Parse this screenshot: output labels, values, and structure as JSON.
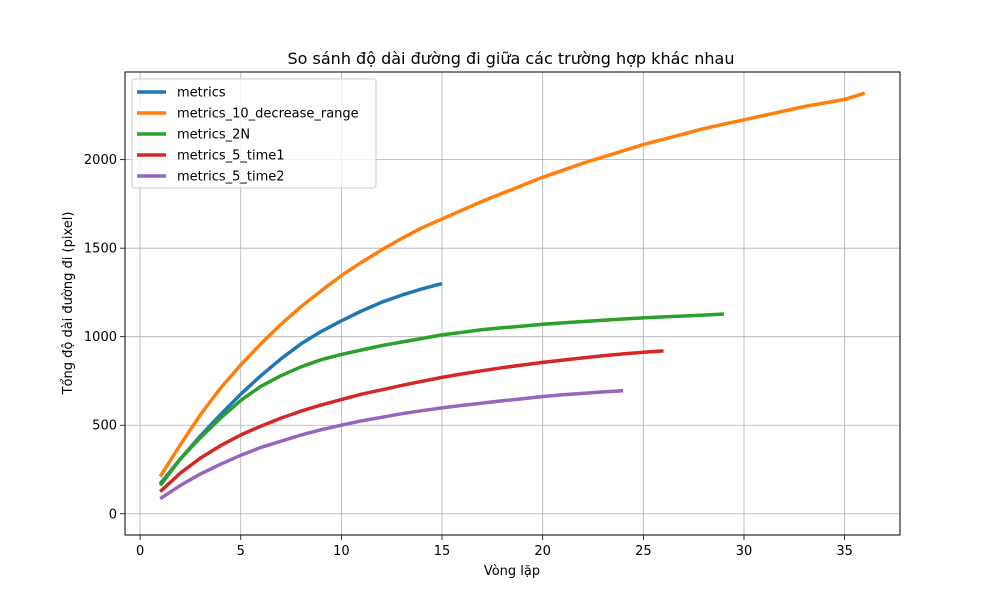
{
  "chart_data": {
    "type": "line",
    "title": "So sánh độ dài đường đi giữa các trường hợp khác nhau",
    "xlabel": "Vòng lặp",
    "ylabel": "Tổng độ dài đường đi (pixel)",
    "xlim": [
      -0.75,
      37.75
    ],
    "ylim": [
      -120,
      2495
    ],
    "xticks": [
      0,
      5,
      10,
      15,
      20,
      25,
      30,
      35
    ],
    "yticks": [
      0,
      500,
      1000,
      1500,
      2000
    ],
    "grid": true,
    "legend_position": "top-left",
    "series": [
      {
        "name": "metrics",
        "color": "#1f77b4",
        "x": [
          1,
          2,
          3,
          4,
          5,
          6,
          7,
          8,
          9,
          10,
          11,
          12,
          13,
          14,
          15
        ],
        "y": [
          170,
          310,
          440,
          560,
          675,
          780,
          875,
          960,
          1030,
          1090,
          1145,
          1195,
          1235,
          1270,
          1300
        ]
      },
      {
        "name": "metrics_10_decrease_range",
        "color": "#ff7f0e",
        "x": [
          1,
          2,
          3,
          4,
          5,
          6,
          7,
          8,
          9,
          10,
          11,
          12,
          13,
          14,
          15,
          16,
          17,
          18,
          19,
          20,
          21,
          22,
          23,
          24,
          25,
          26,
          27,
          28,
          29,
          30,
          31,
          32,
          33,
          34,
          35,
          36
        ],
        "y": [
          210,
          390,
          560,
          710,
          840,
          960,
          1070,
          1170,
          1260,
          1345,
          1420,
          1490,
          1555,
          1615,
          1665,
          1715,
          1765,
          1810,
          1855,
          1900,
          1940,
          1980,
          2015,
          2050,
          2085,
          2115,
          2145,
          2175,
          2200,
          2225,
          2250,
          2275,
          2300,
          2320,
          2340,
          2375
        ]
      },
      {
        "name": "metrics_2N",
        "color": "#2ca02c",
        "x": [
          1,
          2,
          3,
          4,
          5,
          6,
          7,
          8,
          9,
          10,
          11,
          12,
          13,
          14,
          15,
          16,
          17,
          18,
          19,
          20,
          21,
          22,
          23,
          24,
          25,
          26,
          27,
          28,
          29
        ],
        "y": [
          160,
          310,
          430,
          540,
          640,
          720,
          780,
          830,
          870,
          900,
          925,
          950,
          970,
          990,
          1010,
          1025,
          1040,
          1050,
          1060,
          1070,
          1078,
          1086,
          1093,
          1100,
          1106,
          1112,
          1117,
          1122,
          1128
        ]
      },
      {
        "name": "metrics_5_time1",
        "color": "#d62728",
        "x": [
          1,
          2,
          3,
          4,
          5,
          6,
          7,
          8,
          9,
          10,
          11,
          12,
          13,
          14,
          15,
          16,
          17,
          18,
          19,
          20,
          21,
          22,
          23,
          24,
          25,
          26
        ],
        "y": [
          125,
          230,
          315,
          385,
          445,
          495,
          540,
          580,
          615,
          645,
          675,
          700,
          725,
          748,
          770,
          790,
          808,
          825,
          840,
          855,
          868,
          880,
          892,
          903,
          912,
          920
        ]
      },
      {
        "name": "metrics_5_time2",
        "color": "#9467bd",
        "x": [
          1,
          2,
          3,
          4,
          5,
          6,
          7,
          8,
          9,
          10,
          11,
          12,
          13,
          14,
          15,
          16,
          17,
          18,
          19,
          20,
          21,
          22,
          23,
          24
        ],
        "y": [
          85,
          160,
          225,
          280,
          330,
          375,
          410,
          445,
          475,
          500,
          525,
          545,
          565,
          582,
          598,
          612,
          625,
          638,
          650,
          662,
          672,
          680,
          688,
          695
        ]
      }
    ]
  }
}
